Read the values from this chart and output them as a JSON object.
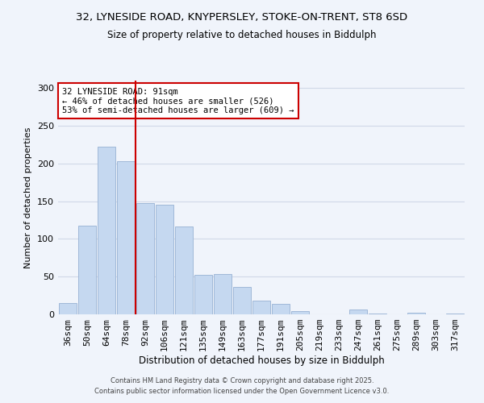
{
  "title_line1": "32, LYNESIDE ROAD, KNYPERSLEY, STOKE-ON-TRENT, ST8 6SD",
  "title_line2": "Size of property relative to detached houses in Biddulph",
  "xlabel": "Distribution of detached houses by size in Biddulph",
  "ylabel": "Number of detached properties",
  "bar_labels": [
    "36sqm",
    "50sqm",
    "64sqm",
    "78sqm",
    "92sqm",
    "106sqm",
    "121sqm",
    "135sqm",
    "149sqm",
    "163sqm",
    "177sqm",
    "191sqm",
    "205sqm",
    "219sqm",
    "233sqm",
    "247sqm",
    "261sqm",
    "275sqm",
    "289sqm",
    "303sqm",
    "317sqm"
  ],
  "bar_values": [
    15,
    118,
    222,
    203,
    148,
    145,
    116,
    52,
    53,
    36,
    18,
    14,
    4,
    0,
    0,
    6,
    1,
    0,
    2,
    0,
    1
  ],
  "bar_color": "#c5d8f0",
  "bar_edge_color": "#a0b8d8",
  "grid_color": "#d0d8e8",
  "background_color": "#f0f4fb",
  "property_line_idx": 4,
  "property_line_color": "#cc0000",
  "annotation_text_line1": "32 LYNESIDE ROAD: 91sqm",
  "annotation_text_line2": "← 46% of detached houses are smaller (526)",
  "annotation_text_line3": "53% of semi-detached houses are larger (609) →",
  "annotation_box_color": "#cc0000",
  "ylim": [
    0,
    310
  ],
  "yticks": [
    0,
    50,
    100,
    150,
    200,
    250,
    300
  ],
  "footer_line1": "Contains HM Land Registry data © Crown copyright and database right 2025.",
  "footer_line2": "Contains public sector information licensed under the Open Government Licence v3.0."
}
